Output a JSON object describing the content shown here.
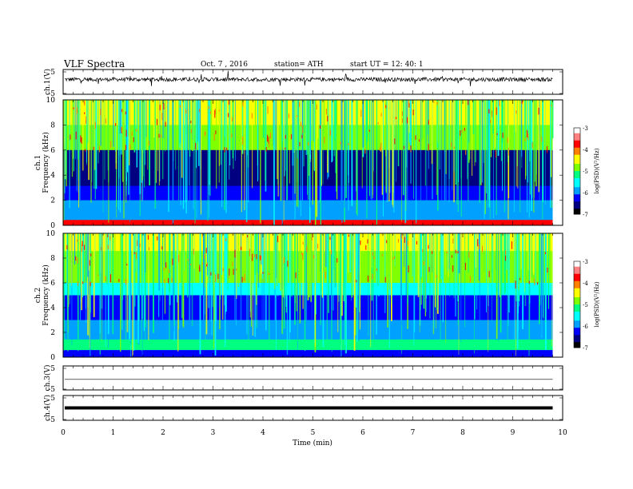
{
  "header": {
    "title": "VLF  Spectra",
    "date": "Oct. 7  , 2016",
    "station": "station= ATH",
    "start": "start  UT  =    12: 40: 1"
  },
  "colors": {
    "spectrum": [
      "#000000",
      "#000080",
      "#0000ff",
      "#00a0ff",
      "#00ffff",
      "#00ff80",
      "#80ff00",
      "#ffff00",
      "#ff8000",
      "#ff0000",
      "#ff8080",
      "#ffffff"
    ],
    "trace": "#000000"
  },
  "chart_data": [
    {
      "type": "line",
      "name": "ch1-waveform",
      "ylabel": "ch.1(V)",
      "ylim": [
        -5,
        5
      ],
      "yticks": [
        "5",
        "-5"
      ],
      "x_range": [
        0,
        10
      ],
      "description_level": 1.0
    },
    {
      "type": "heatmap",
      "name": "ch1-spectrogram",
      "ylabel": "ch.1\nFrequency  (kHz)",
      "ylim": [
        0,
        10
      ],
      "yticks": [
        "0",
        "2",
        "4",
        "6",
        "8",
        "10"
      ],
      "xlim": [
        0,
        10
      ],
      "data_end_min": 9.8,
      "colorbar": {
        "label": "log(PSD)(V²/Hz)",
        "range": [
          -7,
          -3
        ],
        "ticks": [
          "-3",
          "-4",
          "-5",
          "-6",
          "-7"
        ]
      }
    },
    {
      "type": "heatmap",
      "name": "ch2-spectrogram",
      "ylabel": "ch.2\nFrequency  (kHz)",
      "ylim": [
        0,
        10
      ],
      "yticks": [
        "0",
        "2",
        "4",
        "6",
        "8",
        "10"
      ],
      "xlim": [
        0,
        10
      ],
      "data_end_min": 9.8,
      "colorbar": {
        "label": "log(PSD)(V²/Hz)",
        "range": [
          -7,
          -3
        ],
        "ticks": [
          "-3",
          "-4",
          "-5",
          "-6",
          "-7"
        ]
      }
    },
    {
      "type": "line",
      "name": "ch3-waveform",
      "ylabel": "ch.3(V)",
      "ylim": [
        -5,
        5
      ],
      "yticks": [
        "5",
        "-5"
      ],
      "level": -0.6
    },
    {
      "type": "line",
      "name": "ch4-waveform",
      "ylabel": "ch.4(V)",
      "ylim": [
        -5,
        5
      ],
      "yticks": [
        "5",
        "-5"
      ],
      "level": 0.0
    }
  ],
  "xaxis": {
    "label": "Time  (min)",
    "ticks": [
      "0",
      "1",
      "2",
      "3",
      "4",
      "5",
      "6",
      "7",
      "8",
      "9",
      "10"
    ],
    "range": [
      0,
      10
    ]
  }
}
